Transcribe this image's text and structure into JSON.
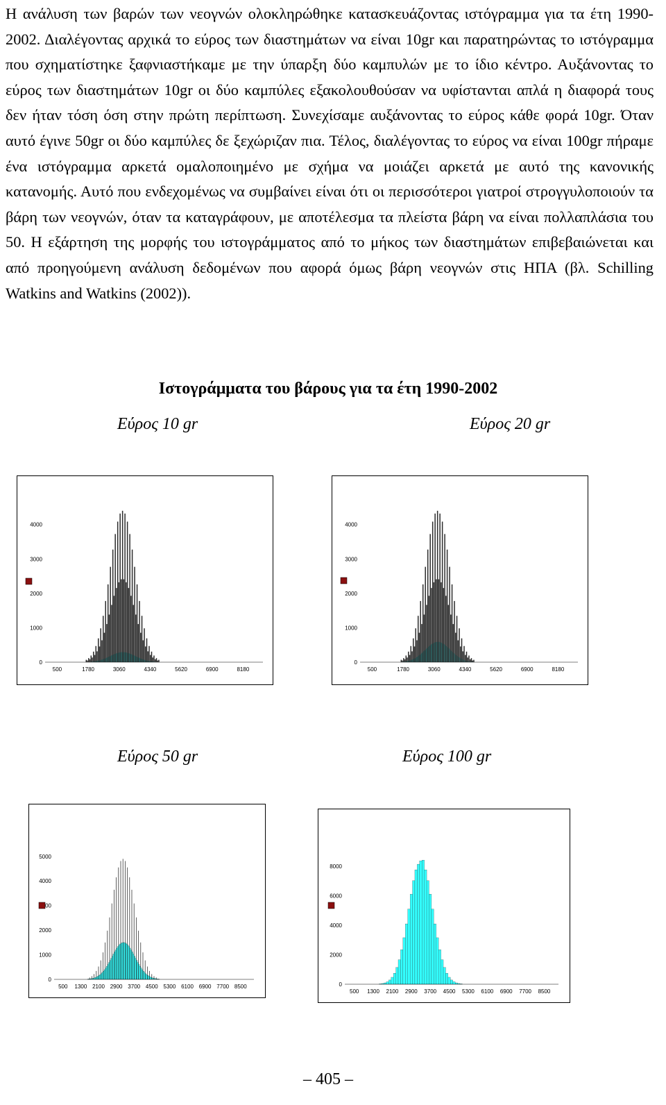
{
  "paragraph": "Η ανάλυση των βαρών των νεογνών ολοκληρώθηκε κατασκευάζοντας ιστόγραμμα για τα έτη 1990-2002. Διαλέγοντας αρχικά το εύρος των διαστημάτων να είναι 10gr και παρατηρώντας το ιστόγραμμα που σχηματίστηκε ξαφνιαστήκαμε με την ύπαρξη δύο καμπυλών με το ίδιο κέντρο. Αυξάνοντας το εύρος των διαστημάτων 10gr οι δύο καμπύλες εξακολουθούσαν να υφίστανται απλά η διαφορά τους δεν ήταν τόση όση στην πρώτη περίπτωση. Συνεχίσαμε αυξάνοντας το εύρος κάθε φορά 10gr. Όταν αυτό έγινε 50gr οι δύο καμπύλες δε ξεχώριζαν πια. Τέλος, διαλέγοντας το εύρος να είναι 100gr πήραμε ένα ιστόγραμμα αρκετά ομαλοποιημένο με σχήμα να μοιάζει αρκετά με αυτό της κανονικής κατανομής. Αυτό που ενδεχομένως να συμβαίνει είναι ότι οι περισσότεροι γιατροί στρογγυλοποιούν τα βάρη των νεογνών, όταν τα καταγράφουν, με αποτέλεσμα τα πλείστα βάρη να είναι πολλαπλάσια του 50. Η εξάρτηση της μορφής του ιστογράμματος από το μήκος των διαστημάτων επιβεβαιώνεται και από προηγούμενη ανάλυση δεδομένων που αφορά όμως βάρη νεογνών στις ΗΠΑ (βλ. Schilling Watkins and Watkins (2002)).",
  "heading": "Ιστογράμματα του βάρους για τα έτη 1990-2002",
  "page_number": "– 405 –",
  "colors": {
    "fill": "#33ffff",
    "dark": "#2b2b2b",
    "legend": "#8b1010"
  },
  "chart_data": [
    {
      "type": "bar",
      "title": "Εύρος 10 gr",
      "bin_width": 10,
      "xticks": [
        "500",
        "1780",
        "3060",
        "4340",
        "5620",
        "6900",
        "8180"
      ],
      "yticks": [
        "0",
        "1000",
        "2000",
        "3000",
        "4000"
      ],
      "ylim": [
        0,
        4600
      ],
      "xlim": [
        0,
        9000
      ],
      "mean": 3200,
      "sd": 520,
      "peak": 290,
      "rounded_peak": 4400,
      "legend": "top-left"
    },
    {
      "type": "bar",
      "title": "Εύρος 20 gr",
      "bin_width": 20,
      "xticks": [
        "500",
        "1780",
        "3060",
        "4340",
        "5620",
        "6900",
        "8180"
      ],
      "yticks": [
        "0",
        "1000",
        "2000",
        "3000",
        "4000"
      ],
      "ylim": [
        0,
        4600
      ],
      "xlim": [
        0,
        9000
      ],
      "mean": 3200,
      "sd": 520,
      "peak": 590,
      "rounded_peak": 4400,
      "legend": "top-left"
    },
    {
      "type": "bar",
      "title": "Εύρος 50 gr",
      "bin_width": 50,
      "xticks": [
        "500",
        "1300",
        "2100",
        "2900",
        "3700",
        "4500",
        "5300",
        "6100",
        "6900",
        "7700",
        "8500"
      ],
      "yticks": [
        "0",
        "1000",
        "2000",
        "3000",
        "4000",
        "5000"
      ],
      "ylim": [
        0,
        5700
      ],
      "xlim": [
        100,
        9100
      ],
      "mean": 3200,
      "sd": 520,
      "peak": 1500,
      "rounded_peak": 4900,
      "legend": "top-left"
    },
    {
      "type": "bar",
      "title": "Εύρος 100 gr",
      "bin_width": 100,
      "xticks": [
        "500",
        "1300",
        "2100",
        "2900",
        "3700",
        "4500",
        "5300",
        "6100",
        "6900",
        "7700",
        "8500"
      ],
      "yticks": [
        "0",
        "2000",
        "4000",
        "6000",
        "8000"
      ],
      "ylim": [
        0,
        9500
      ],
      "xlim": [
        100,
        9100
      ],
      "mean": 3250,
      "sd": 500,
      "peak": 8400,
      "rounded_peak": 0,
      "legend": "top-left"
    }
  ]
}
